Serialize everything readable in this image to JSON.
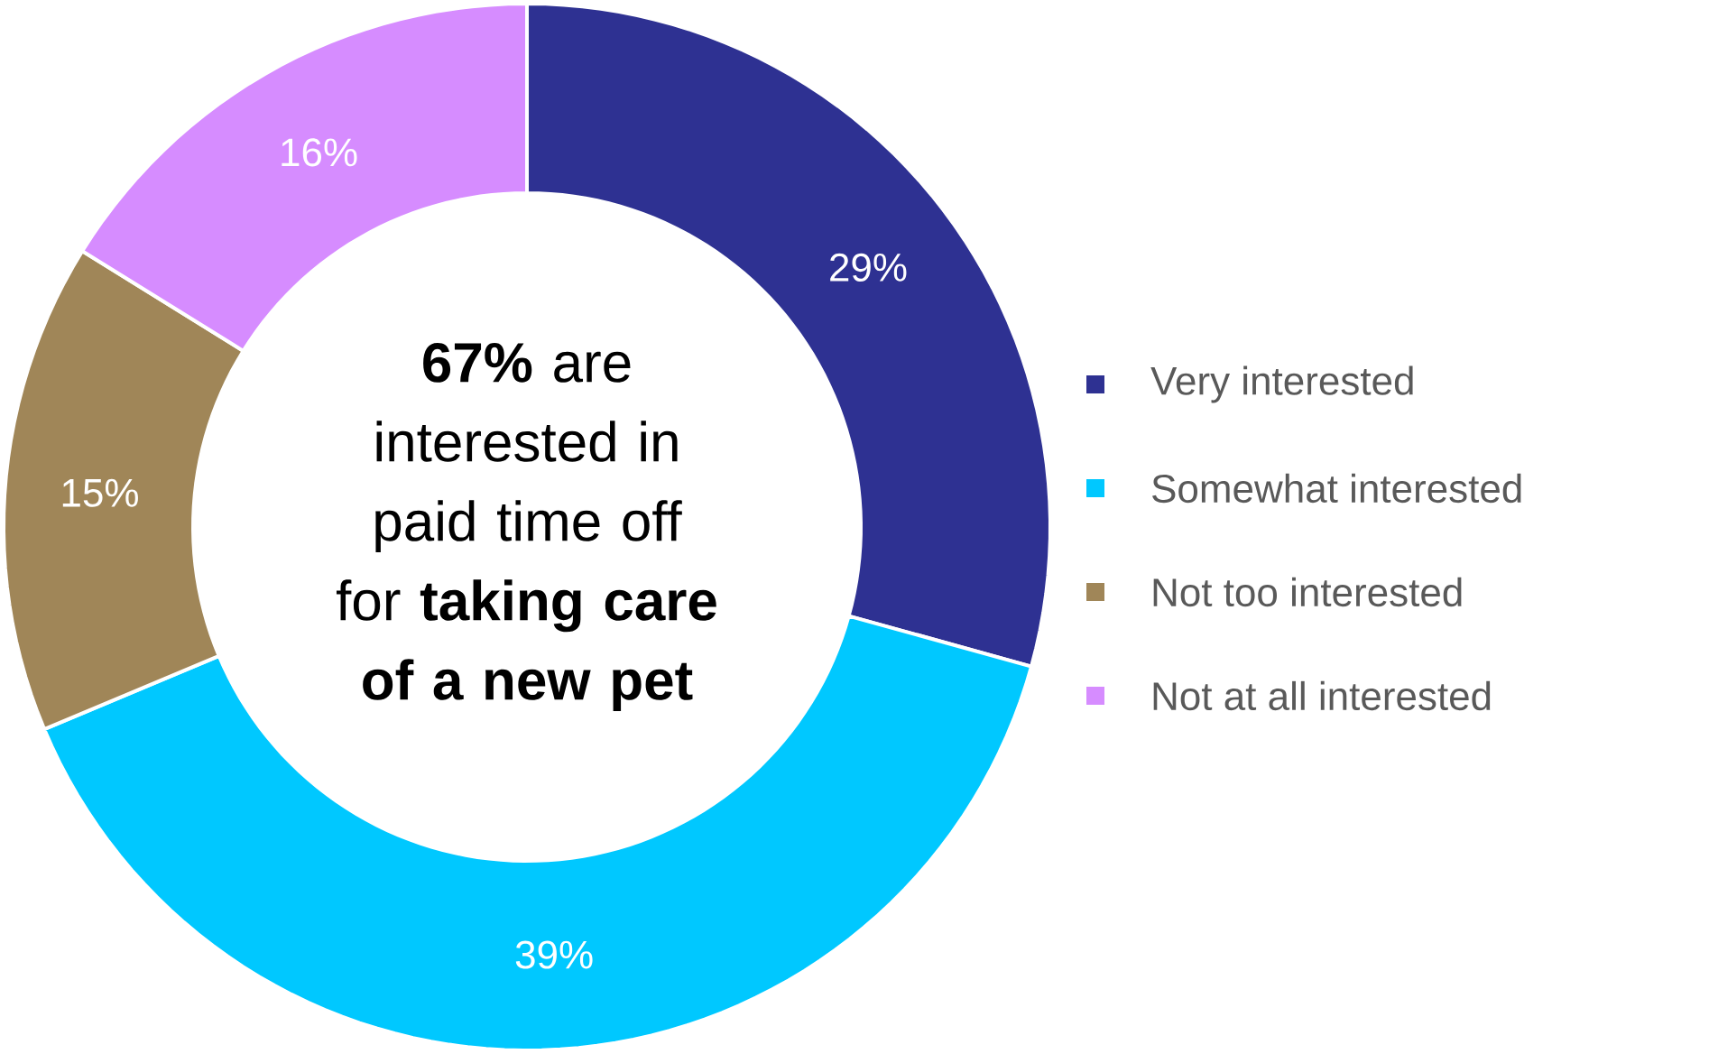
{
  "chart_data": {
    "type": "donut",
    "categories": [
      "Very interested",
      "Somewhat interested",
      "Not too interested",
      "Not at all interested"
    ],
    "values": [
      29,
      39,
      15,
      16
    ],
    "colors": [
      "#2e3192",
      "#00c8ff",
      "#a08658",
      "#d68cff"
    ],
    "value_labels": [
      "29%",
      "39%",
      "15%",
      "16%"
    ],
    "legend": "right",
    "annotations": [
      "**67%** are interested in paid time off for **taking care of a new pet**"
    ]
  }
}
